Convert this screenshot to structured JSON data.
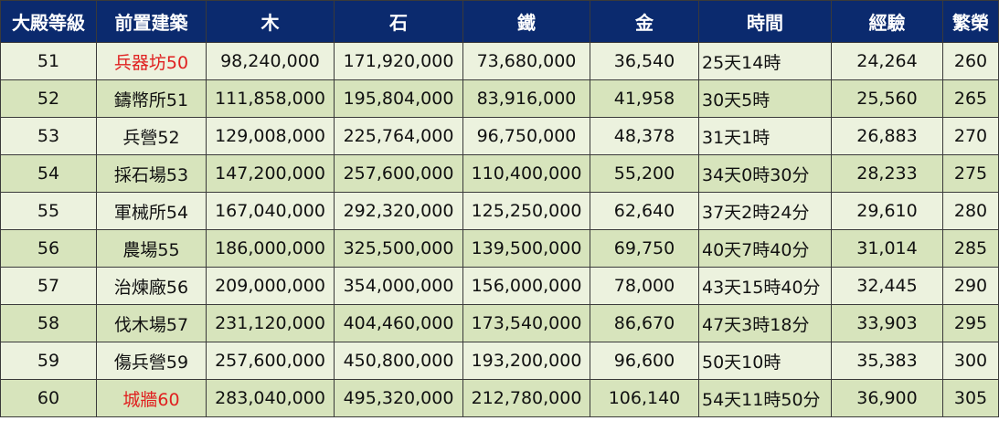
{
  "headers": [
    "大殿等級",
    "前置建築",
    "木",
    "石",
    "鐵",
    "金",
    "時間",
    "經驗",
    "繁榮"
  ],
  "rows": [
    {
      "level": "51",
      "building": "兵器坊50",
      "wood": "98,240,000",
      "stone": "171,920,000",
      "iron": "73,680,000",
      "gold": "36,540",
      "time": "25天14時",
      "exp": "24,264",
      "prosperity": "260"
    },
    {
      "level": "52",
      "building": "鑄幣所51",
      "wood": "111,858,000",
      "stone": "195,804,000",
      "iron": "83,916,000",
      "gold": "41,958",
      "time": "30天5時",
      "exp": "25,560",
      "prosperity": "265"
    },
    {
      "level": "53",
      "building": "兵營52",
      "wood": "129,008,000",
      "stone": "225,764,000",
      "iron": "96,750,000",
      "gold": "48,378",
      "time": "31天1時",
      "exp": "26,883",
      "prosperity": "270"
    },
    {
      "level": "54",
      "building": "採石場53",
      "wood": "147,200,000",
      "stone": "257,600,000",
      "iron": "110,400,000",
      "gold": "55,200",
      "time": "34天0時30分",
      "exp": "28,233",
      "prosperity": "275"
    },
    {
      "level": "55",
      "building": "軍械所54",
      "wood": "167,040,000",
      "stone": "292,320,000",
      "iron": "125,250,000",
      "gold": "62,640",
      "time": "37天2時24分",
      "exp": "29,610",
      "prosperity": "280"
    },
    {
      "level": "56",
      "building": "農場55",
      "wood": "186,000,000",
      "stone": "325,500,000",
      "iron": "139,500,000",
      "gold": "69,750",
      "time": "40天7時40分",
      "exp": "31,014",
      "prosperity": "285"
    },
    {
      "level": "57",
      "building": "治煉廠56",
      "wood": "209,000,000",
      "stone": "354,000,000",
      "iron": "156,000,000",
      "gold": "78,000",
      "time": "43天15時40分",
      "exp": "32,445",
      "prosperity": "290"
    },
    {
      "level": "58",
      "building": "伐木場57",
      "wood": "231,120,000",
      "stone": "404,460,000",
      "iron": "173,540,000",
      "gold": "86,670",
      "time": "47天3時18分",
      "exp": "33,903",
      "prosperity": "295"
    },
    {
      "level": "59",
      "building": "傷兵營59",
      "wood": "257,600,000",
      "stone": "450,800,000",
      "iron": "193,200,000",
      "gold": "96,600",
      "time": "50天10時",
      "exp": "35,383",
      "prosperity": "300"
    },
    {
      "level": "60",
      "building": "城牆60",
      "wood": "283,040,000",
      "stone": "495,320,000",
      "iron": "212,780,000",
      "gold": "106,140",
      "time": "54天11時50分",
      "exp": "36,900",
      "prosperity": "305"
    }
  ],
  "colors": {
    "header_bg": "#0b2a6e",
    "row_light": "#ecf2de",
    "row_dark": "#d7e4bc",
    "highlight": "#e02020"
  },
  "highlighted_buildings": [
    "兵器坊50",
    "城牆60"
  ]
}
